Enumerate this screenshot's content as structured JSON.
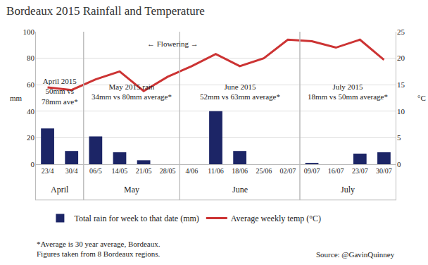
{
  "chart_data": {
    "type": "bar",
    "title": "Bordeaux 2015 Rainfall and Temperature",
    "categories": [
      "23/4",
      "30/4",
      "06/5",
      "14/05",
      "21/05",
      "28/05",
      "4/06",
      "11/06",
      "18/06",
      "25/06",
      "02/07",
      "09/07",
      "16/07",
      "23/07",
      "30/07"
    ],
    "series": [
      {
        "name": "Total rain for week to that date (mm)",
        "type": "bar",
        "color": "#1c2566",
        "values": [
          27,
          10,
          21,
          9,
          3,
          0,
          0,
          40,
          10,
          0,
          0,
          1,
          0,
          8,
          9
        ]
      },
      {
        "name": "Average weekly temp (°C)",
        "type": "line",
        "color": "#cc3333",
        "axis": "y2",
        "values": [
          14.5,
          14,
          16,
          17.5,
          13.8,
          16.5,
          18.5,
          20.8,
          18.5,
          20,
          23.5,
          23.2,
          22,
          23.5,
          19.7
        ]
      }
    ],
    "ylabel": "mm",
    "y2label": "°C",
    "ylim": [
      0,
      100
    ],
    "yticks": [
      0,
      20,
      40,
      60,
      80,
      100
    ],
    "y2lim": [
      0,
      25
    ],
    "y2ticks": [
      0,
      5,
      10,
      15,
      20,
      25
    ],
    "grid": true,
    "legend": "bottom",
    "groups": [
      {
        "label": "April",
        "categories": [
          "23/4",
          "30/4"
        ],
        "note": "April 2015\n50mm vs\n78mm ave*"
      },
      {
        "label": "May",
        "categories": [
          "06/5",
          "14/05",
          "21/05",
          "28/05"
        ],
        "note": "May 2015 rain\n34mm vs 80mm average*"
      },
      {
        "label": "June",
        "categories": [
          "4/06",
          "11/06",
          "18/06",
          "25/06",
          "02/07"
        ],
        "note": "June 2015\n52mm vs 63mm average*"
      },
      {
        "label": "July",
        "categories": [
          "09/07",
          "16/07",
          "23/07",
          "30/07"
        ],
        "note": "July 2015\n18mm vs 50mm average*"
      }
    ],
    "annotations": [
      "← Flowering →"
    ],
    "footnote": "*Average is 30 year average, Bordeaux.\nFigures taken from 8 Bordeaux regions.",
    "source": "Source: @GavinQuinney"
  }
}
